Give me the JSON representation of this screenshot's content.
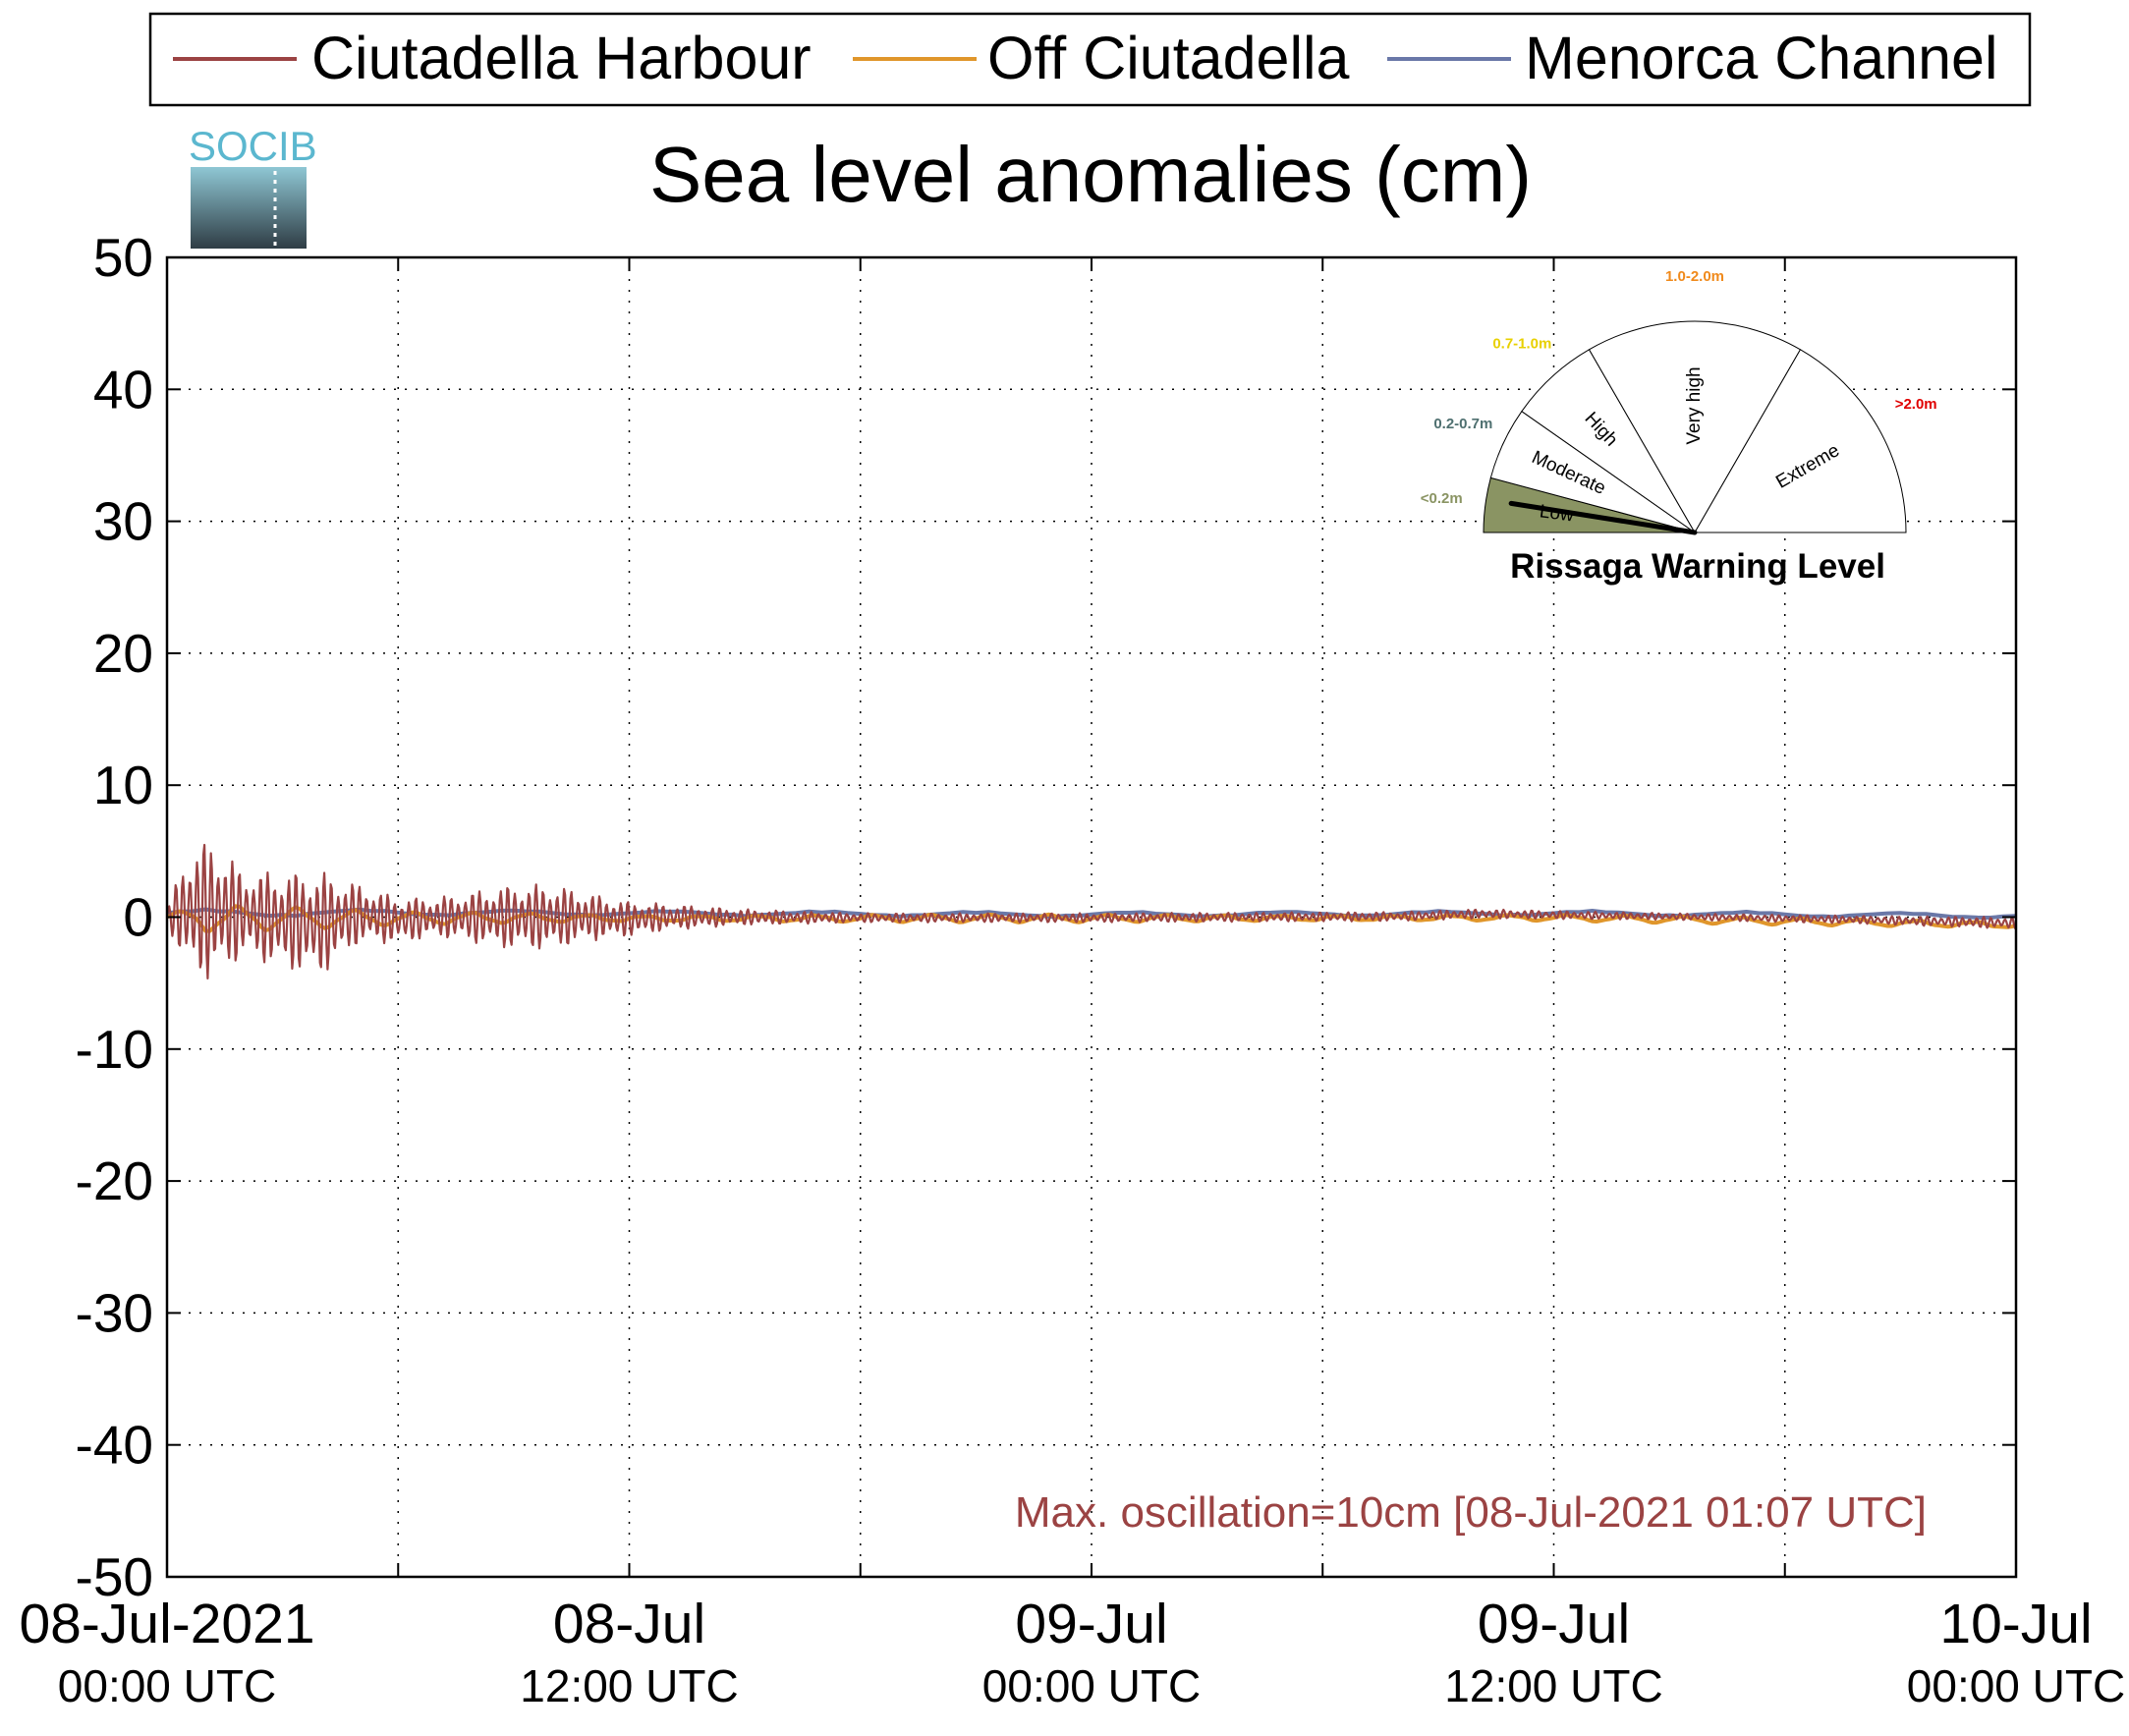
{
  "chart_data": {
    "type": "line",
    "title": "Sea level anomalies (cm)",
    "logo_text": "SOCIB",
    "ylim": [
      -50,
      50
    ],
    "yticks": [
      50,
      40,
      30,
      20,
      10,
      0,
      -10,
      -20,
      -30,
      -40,
      -50
    ],
    "x_range": [
      "2021-07-08 00:00",
      "2021-07-10 00:00"
    ],
    "x_tick_labels": [
      {
        "at": "2021-07-08 00:00",
        "line1": "08-Jul-2021",
        "line2": "00:00 UTC"
      },
      {
        "at": "2021-07-08 12:00",
        "line1": "08-Jul",
        "line2": "12:00 UTC"
      },
      {
        "at": "2021-07-09 00:00",
        "line1": "09-Jul",
        "line2": "00:00 UTC"
      },
      {
        "at": "2021-07-09 12:00",
        "line1": "09-Jul",
        "line2": "12:00 UTC"
      },
      {
        "at": "2021-07-10 00:00",
        "line1": "10-Jul",
        "line2": "00:00 UTC"
      }
    ],
    "grid": true,
    "legend_placement": "top",
    "series": [
      {
        "name": "Ciutadella Harbour",
        "color": "#9B4343",
        "envelope": [
          {
            "x": "2021-07-08 00:00",
            "max": 0.5,
            "min": -0.5
          },
          {
            "x": "2021-07-08 00:30",
            "max": 5,
            "min": -4
          },
          {
            "x": "2021-07-08 01:07",
            "max": 6,
            "min": -5
          },
          {
            "x": "2021-07-08 02:00",
            "max": 3.5,
            "min": -3
          },
          {
            "x": "2021-07-08 03:00",
            "max": 3.5,
            "min": -4
          },
          {
            "x": "2021-07-08 04:00",
            "max": 3.5,
            "min": -4.5
          },
          {
            "x": "2021-07-08 05:00",
            "max": 2.5,
            "min": -2
          },
          {
            "x": "2021-07-08 06:00",
            "max": 1.5,
            "min": -2
          },
          {
            "x": "2021-07-08 07:00",
            "max": 1.5,
            "min": -1.5
          },
          {
            "x": "2021-07-08 08:00",
            "max": 2,
            "min": -2
          },
          {
            "x": "2021-07-08 09:00",
            "max": 2.5,
            "min": -2.5
          },
          {
            "x": "2021-07-08 10:00",
            "max": 2.5,
            "min": -2.5
          },
          {
            "x": "2021-07-08 11:00",
            "max": 1.8,
            "min": -1.8
          },
          {
            "x": "2021-07-08 12:00",
            "max": 1.2,
            "min": -1.5
          },
          {
            "x": "2021-07-08 13:00",
            "max": 1,
            "min": -1
          },
          {
            "x": "2021-07-08 14:00",
            "max": 0.8,
            "min": -0.8
          },
          {
            "x": "2021-07-08 15:00",
            "max": 0.6,
            "min": -0.6
          },
          {
            "x": "2021-07-08 18:00",
            "max": 0.3,
            "min": -0.4
          },
          {
            "x": "2021-07-09 00:00",
            "max": 0.3,
            "min": -0.4
          },
          {
            "x": "2021-07-09 08:00",
            "max": 0.4,
            "min": -0.3
          },
          {
            "x": "2021-07-09 10:00",
            "max": 0.6,
            "min": -0.1
          },
          {
            "x": "2021-07-09 15:00",
            "max": 0.3,
            "min": -0.2
          },
          {
            "x": "2021-07-09 20:00",
            "max": 0.1,
            "min": -0.5
          },
          {
            "x": "2021-07-10 00:00",
            "max": 0,
            "min": -0.9
          }
        ]
      },
      {
        "name": "Off Ciutadella",
        "color": "#E0962B",
        "envelope": [
          {
            "x": "2021-07-08 00:00",
            "max": 0.3,
            "min": -0.3
          },
          {
            "x": "2021-07-08 01:00",
            "max": 1,
            "min": -1.2
          },
          {
            "x": "2021-07-08 03:00",
            "max": 0.8,
            "min": -1
          },
          {
            "x": "2021-07-08 06:00",
            "max": 0.4,
            "min": -0.6
          },
          {
            "x": "2021-07-08 09:00",
            "max": 0.4,
            "min": -0.5
          },
          {
            "x": "2021-07-08 12:00",
            "max": 0.2,
            "min": -0.4
          },
          {
            "x": "2021-07-09 00:00",
            "max": 0.2,
            "min": -0.4
          },
          {
            "x": "2021-07-09 12:00",
            "max": 0.2,
            "min": -0.3
          },
          {
            "x": "2021-07-10 00:00",
            "max": -0.3,
            "min": -0.9
          }
        ]
      },
      {
        "name": "Menorca Channel",
        "color": "#6A78A8",
        "envelope": [
          {
            "x": "2021-07-08 00:00",
            "max": 0.6,
            "min": 0
          },
          {
            "x": "2021-07-08 06:00",
            "max": 0.6,
            "min": 0.1
          },
          {
            "x": "2021-07-08 12:00",
            "max": 0.5,
            "min": 0.1
          },
          {
            "x": "2021-07-09 00:00",
            "max": 0.4,
            "min": 0
          },
          {
            "x": "2021-07-09 12:00",
            "max": 0.5,
            "min": 0.1
          },
          {
            "x": "2021-07-10 00:00",
            "max": 0.3,
            "min": -0.1
          }
        ]
      }
    ],
    "annotation": {
      "text": "Max. oscillation=10cm [08-Jul-2021 01:07 UTC]",
      "color": "#9B4343"
    },
    "gauge": {
      "title": "Rissaga Warning Level",
      "current_level": "Low",
      "sectors": [
        {
          "name": "Low",
          "range": "<0.2m",
          "range_color": "#8A9463",
          "fill": "#8A9463"
        },
        {
          "name": "Moderate",
          "range": "0.2-0.7m",
          "range_color": "#4F7070",
          "fill": "#ffffff"
        },
        {
          "name": "High",
          "range": "0.7-1.0m",
          "range_color": "#E8D000",
          "fill": "#ffffff"
        },
        {
          "name": "Very high",
          "range": "1.0-2.0m",
          "range_color": "#F08A1C",
          "fill": "#ffffff"
        },
        {
          "name": "Extreme",
          "range": ">2.0m",
          "range_color": "#E00000",
          "fill": "#ffffff"
        }
      ]
    }
  }
}
